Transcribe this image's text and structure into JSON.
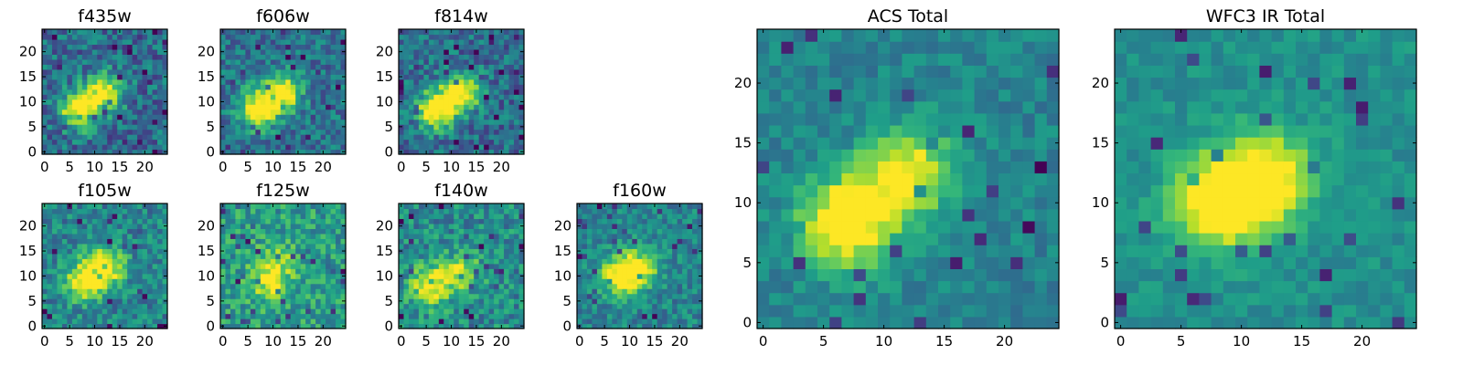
{
  "chart_data": [
    {
      "type": "heatmap",
      "title": "f435w",
      "grid": false,
      "extent": [
        0,
        25
      ],
      "xticks": [
        0,
        5,
        10,
        15,
        20
      ],
      "yticks": [
        0,
        5,
        10,
        15,
        20
      ],
      "blobs": [
        {
          "x": 7,
          "y": 8.5,
          "peak": 1.0
        },
        {
          "x": 12,
          "y": 12,
          "peak": 0.9
        }
      ],
      "noise": 0.34,
      "seed": 11,
      "background": 0.35
    },
    {
      "type": "heatmap",
      "title": "f606w",
      "grid": false,
      "extent": [
        0,
        25
      ],
      "xticks": [
        0,
        5,
        10,
        15,
        20
      ],
      "yticks": [
        0,
        5,
        10,
        15,
        20
      ],
      "blobs": [
        {
          "x": 7,
          "y": 8.5,
          "peak": 1.0
        },
        {
          "x": 12,
          "y": 12,
          "peak": 0.9
        }
      ],
      "noise": 0.3,
      "seed": 23,
      "background": 0.38
    },
    {
      "type": "heatmap",
      "title": "f814w",
      "grid": false,
      "extent": [
        0,
        25
      ],
      "xticks": [
        0,
        5,
        10,
        15,
        20
      ],
      "yticks": [
        0,
        5,
        10,
        15,
        20
      ],
      "blobs": [
        {
          "x": 7,
          "y": 8.5,
          "peak": 1.0
        },
        {
          "x": 12,
          "y": 12,
          "peak": 0.95
        }
      ],
      "noise": 0.32,
      "seed": 37,
      "background": 0.36
    },
    {
      "type": "heatmap",
      "title": "f105w",
      "grid": false,
      "extent": [
        0,
        25
      ],
      "xticks": [
        0,
        5,
        10,
        15,
        20
      ],
      "yticks": [
        0,
        5,
        10,
        15,
        20
      ],
      "blobs": [
        {
          "x": 8,
          "y": 9,
          "peak": 0.9
        },
        {
          "x": 12,
          "y": 12,
          "peak": 0.9
        }
      ],
      "noise": 0.3,
      "seed": 41,
      "background": 0.45
    },
    {
      "type": "heatmap",
      "title": "f125w",
      "grid": false,
      "extent": [
        0,
        25
      ],
      "xticks": [
        0,
        5,
        10,
        15,
        20
      ],
      "yticks": [
        0,
        5,
        10,
        15,
        20
      ],
      "blobs": [
        {
          "x": 9,
          "y": 9,
          "peak": 0.7
        },
        {
          "x": 11,
          "y": 13,
          "peak": 0.6
        }
      ],
      "noise": 0.32,
      "seed": 53,
      "background": 0.55
    },
    {
      "type": "heatmap",
      "title": "f140w",
      "grid": false,
      "extent": [
        0,
        25
      ],
      "xticks": [
        0,
        5,
        10,
        15,
        20
      ],
      "yticks": [
        0,
        5,
        10,
        15,
        20
      ],
      "blobs": [
        {
          "x": 6,
          "y": 8,
          "peak": 0.9
        },
        {
          "x": 12,
          "y": 11,
          "peak": 0.7
        }
      ],
      "noise": 0.32,
      "seed": 67,
      "background": 0.48
    },
    {
      "type": "heatmap",
      "title": "f160w",
      "grid": false,
      "extent": [
        0,
        25
      ],
      "xticks": [
        0,
        5,
        10,
        15,
        20
      ],
      "yticks": [
        0,
        5,
        10,
        15,
        20
      ],
      "blobs": [
        {
          "x": 8,
          "y": 10,
          "peak": 0.9
        },
        {
          "x": 12,
          "y": 12,
          "peak": 0.8
        }
      ],
      "noise": 0.26,
      "seed": 79,
      "background": 0.45
    },
    {
      "type": "heatmap",
      "title": "ACS Total",
      "grid": false,
      "extent": [
        0,
        25
      ],
      "xticks": [
        0,
        5,
        10,
        15,
        20
      ],
      "yticks": [
        0,
        5,
        10,
        15,
        20
      ],
      "blobs": [
        {
          "x": 7,
          "y": 8.5,
          "peak": 1.0
        },
        {
          "x": 12,
          "y": 12.5,
          "peak": 0.85
        }
      ],
      "noise": 0.18,
      "seed": 97,
      "background": 0.45
    },
    {
      "type": "heatmap",
      "title": "WFC3 IR Total",
      "grid": false,
      "extent": [
        0,
        25
      ],
      "xticks": [
        0,
        5,
        10,
        15,
        20
      ],
      "yticks": [
        0,
        5,
        10,
        15,
        20
      ],
      "blobs": [
        {
          "x": 8,
          "y": 10,
          "peak": 0.95
        },
        {
          "x": 12,
          "y": 12,
          "peak": 0.95
        }
      ],
      "noise": 0.14,
      "seed": 131,
      "background": 0.5
    }
  ]
}
